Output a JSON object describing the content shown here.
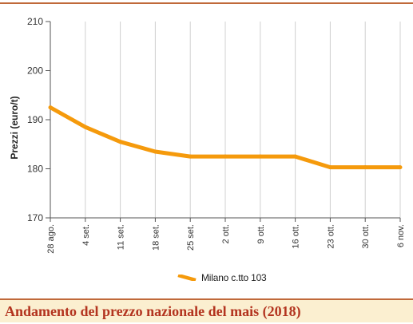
{
  "caption": "Andamento del prezzo nazionale del mais (2018)",
  "colors": {
    "series": "#f59a0c",
    "accent": "#c0693a",
    "caption_text": "#b3341f",
    "caption_bg": "#fbefd0"
  },
  "chart_data": {
    "type": "line",
    "title": "",
    "xlabel": "",
    "ylabel": "Prezzi (euro/t)",
    "ylim": [
      170,
      210
    ],
    "yticks": [
      170,
      180,
      190,
      200,
      210
    ],
    "categories": [
      "28 ago.",
      "4 set.",
      "11 set.",
      "18 set.",
      "25 set.",
      "2 ott.",
      "9 ott.",
      "16 ott.",
      "23 ott.",
      "30 ott.",
      "6 nov."
    ],
    "series": [
      {
        "name": "Milano  c.tto 103",
        "values": [
          192.5,
          188.5,
          185.5,
          183.5,
          182.5,
          182.5,
          182.5,
          182.5,
          180.3,
          180.3,
          180.3
        ]
      }
    ],
    "grid": "vertical",
    "legend": "bottom"
  }
}
